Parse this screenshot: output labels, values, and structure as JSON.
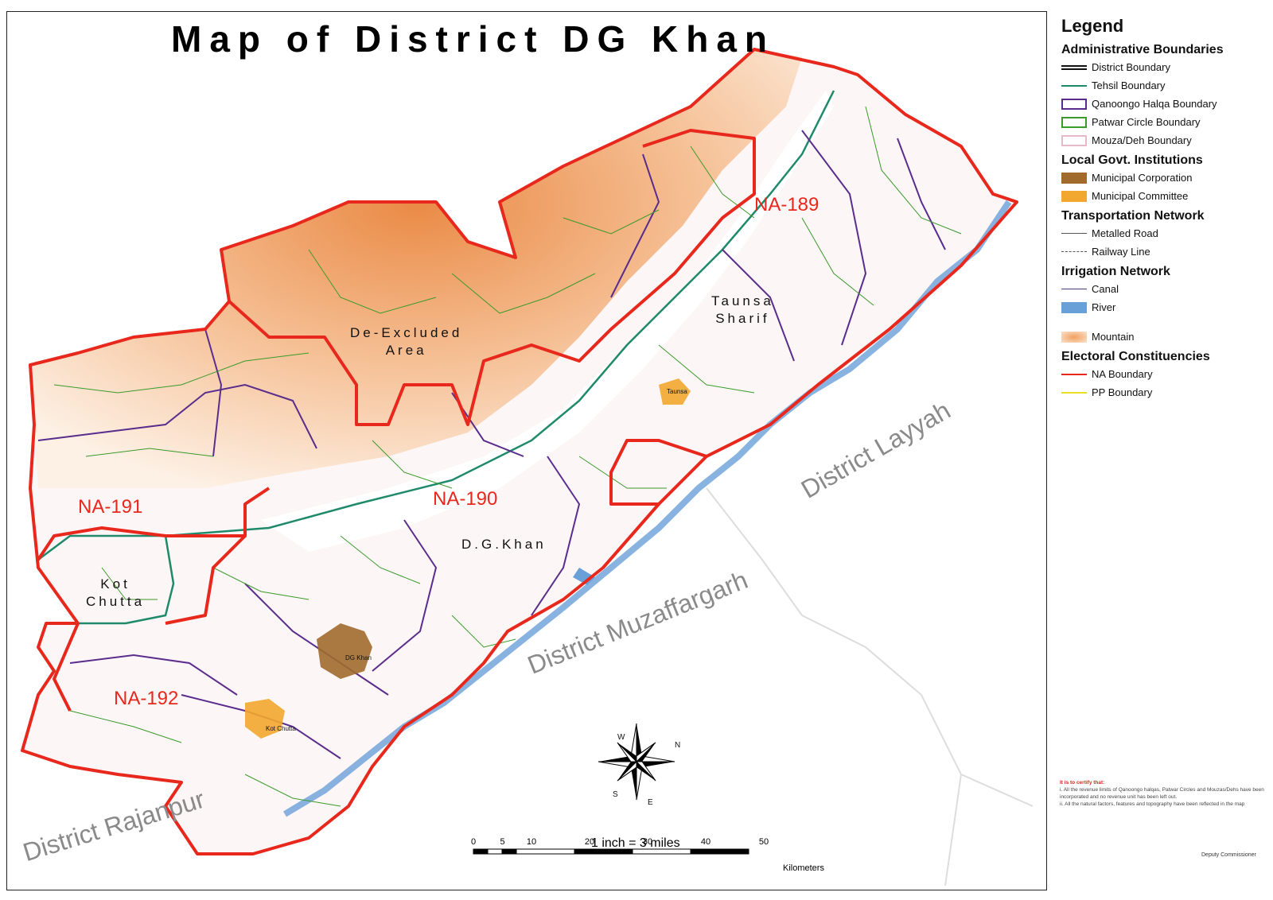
{
  "title": "Map of District DG Khan",
  "legend": {
    "heading": "Legend",
    "sections": [
      {
        "title": "Administrative Boundaries",
        "items": [
          {
            "label": "District Boundary",
            "symbol": "double-line",
            "color": "#111111"
          },
          {
            "label": "Tehsil Boundary",
            "symbol": "line",
            "color": "#1f8a6a"
          },
          {
            "label": "Qanoongo Halqa Boundary",
            "symbol": "box",
            "color": "#5a2d8c"
          },
          {
            "label": "Patwar Circle Boundary",
            "symbol": "box",
            "color": "#3a9a2a"
          },
          {
            "label": "Mouza/Deh Boundary",
            "symbol": "box",
            "color": "#e7b8c6"
          }
        ]
      },
      {
        "title": "Local Govt. Institutions",
        "items": [
          {
            "label": "Municipal Corporation",
            "symbol": "fill",
            "color": "#a06b2c"
          },
          {
            "label": "Municipal Committee",
            "symbol": "fill",
            "color": "#f2a72e"
          }
        ]
      },
      {
        "title": "Transportation Network",
        "items": [
          {
            "label": "Metalled Road",
            "symbol": "thin-line",
            "color": "#555555"
          },
          {
            "label": "Railway Line",
            "symbol": "dashed-line",
            "color": "#555555"
          }
        ]
      },
      {
        "title": "Irrigation Network",
        "items": [
          {
            "label": "Canal",
            "symbol": "thin-line",
            "color": "#4a3a7a"
          },
          {
            "label": "River",
            "symbol": "fill",
            "color": "#6aa0d8"
          }
        ]
      },
      {
        "title": "",
        "items": [
          {
            "label": "Mountain",
            "symbol": "gradient",
            "color": "#f0a060"
          }
        ]
      },
      {
        "title": "Electoral Constituencies",
        "items": [
          {
            "label": "NA Boundary",
            "symbol": "line",
            "color": "#e8281c"
          },
          {
            "label": "PP Boundary",
            "symbol": "line",
            "color": "#e8e020"
          }
        ]
      }
    ]
  },
  "certify": {
    "heading": "It is to certify that:",
    "lines": [
      "i.  All the revenue limits of Qanoongo halqas, Patwar Circles and Mouzas/Dehs have been incorporated and no revenue unit has been left out.",
      "ii. All the natural factors, features and topography have been reflected in the map"
    ],
    "signature": "Deputy Commissioner"
  },
  "districts": {
    "layyah": "District Layyah",
    "muzaffargarh": "District Muzaffargarh",
    "rajanpur": "District Rajanpur"
  },
  "constituencies": {
    "na189": "NA-189",
    "na190": "NA-190",
    "na191": "NA-191",
    "na192": "NA-192"
  },
  "places": {
    "deexcluded": "De-Excluded\nArea",
    "taunsa_sharif": "Taunsa\nSharif",
    "dg_khan_tehsil": "D.G.Khan",
    "kot_chutta_tehsil": "Kot\nChutta",
    "taunsa_town": "Taunsa",
    "dg_khan_town": "DG Khan",
    "kot_chutta_town": "Kot Chutta"
  },
  "compass": {
    "n": "N",
    "s": "S",
    "e": "E",
    "w": "W"
  },
  "scale": {
    "ratio": "1 inch = 3 miles",
    "ticks": [
      "0",
      "5",
      "10",
      "20",
      "30",
      "40",
      "50"
    ],
    "unit": "Kilometers"
  },
  "colors": {
    "na_boundary": "#e8281c",
    "tehsil": "#1f8a6a",
    "qanoongo": "#5a2d8c",
    "patwar": "#3a9a2a",
    "river": "#6aa0d8",
    "mountain": "#f0a060",
    "corporation": "#a06b2c",
    "committee": "#f2a72e"
  }
}
